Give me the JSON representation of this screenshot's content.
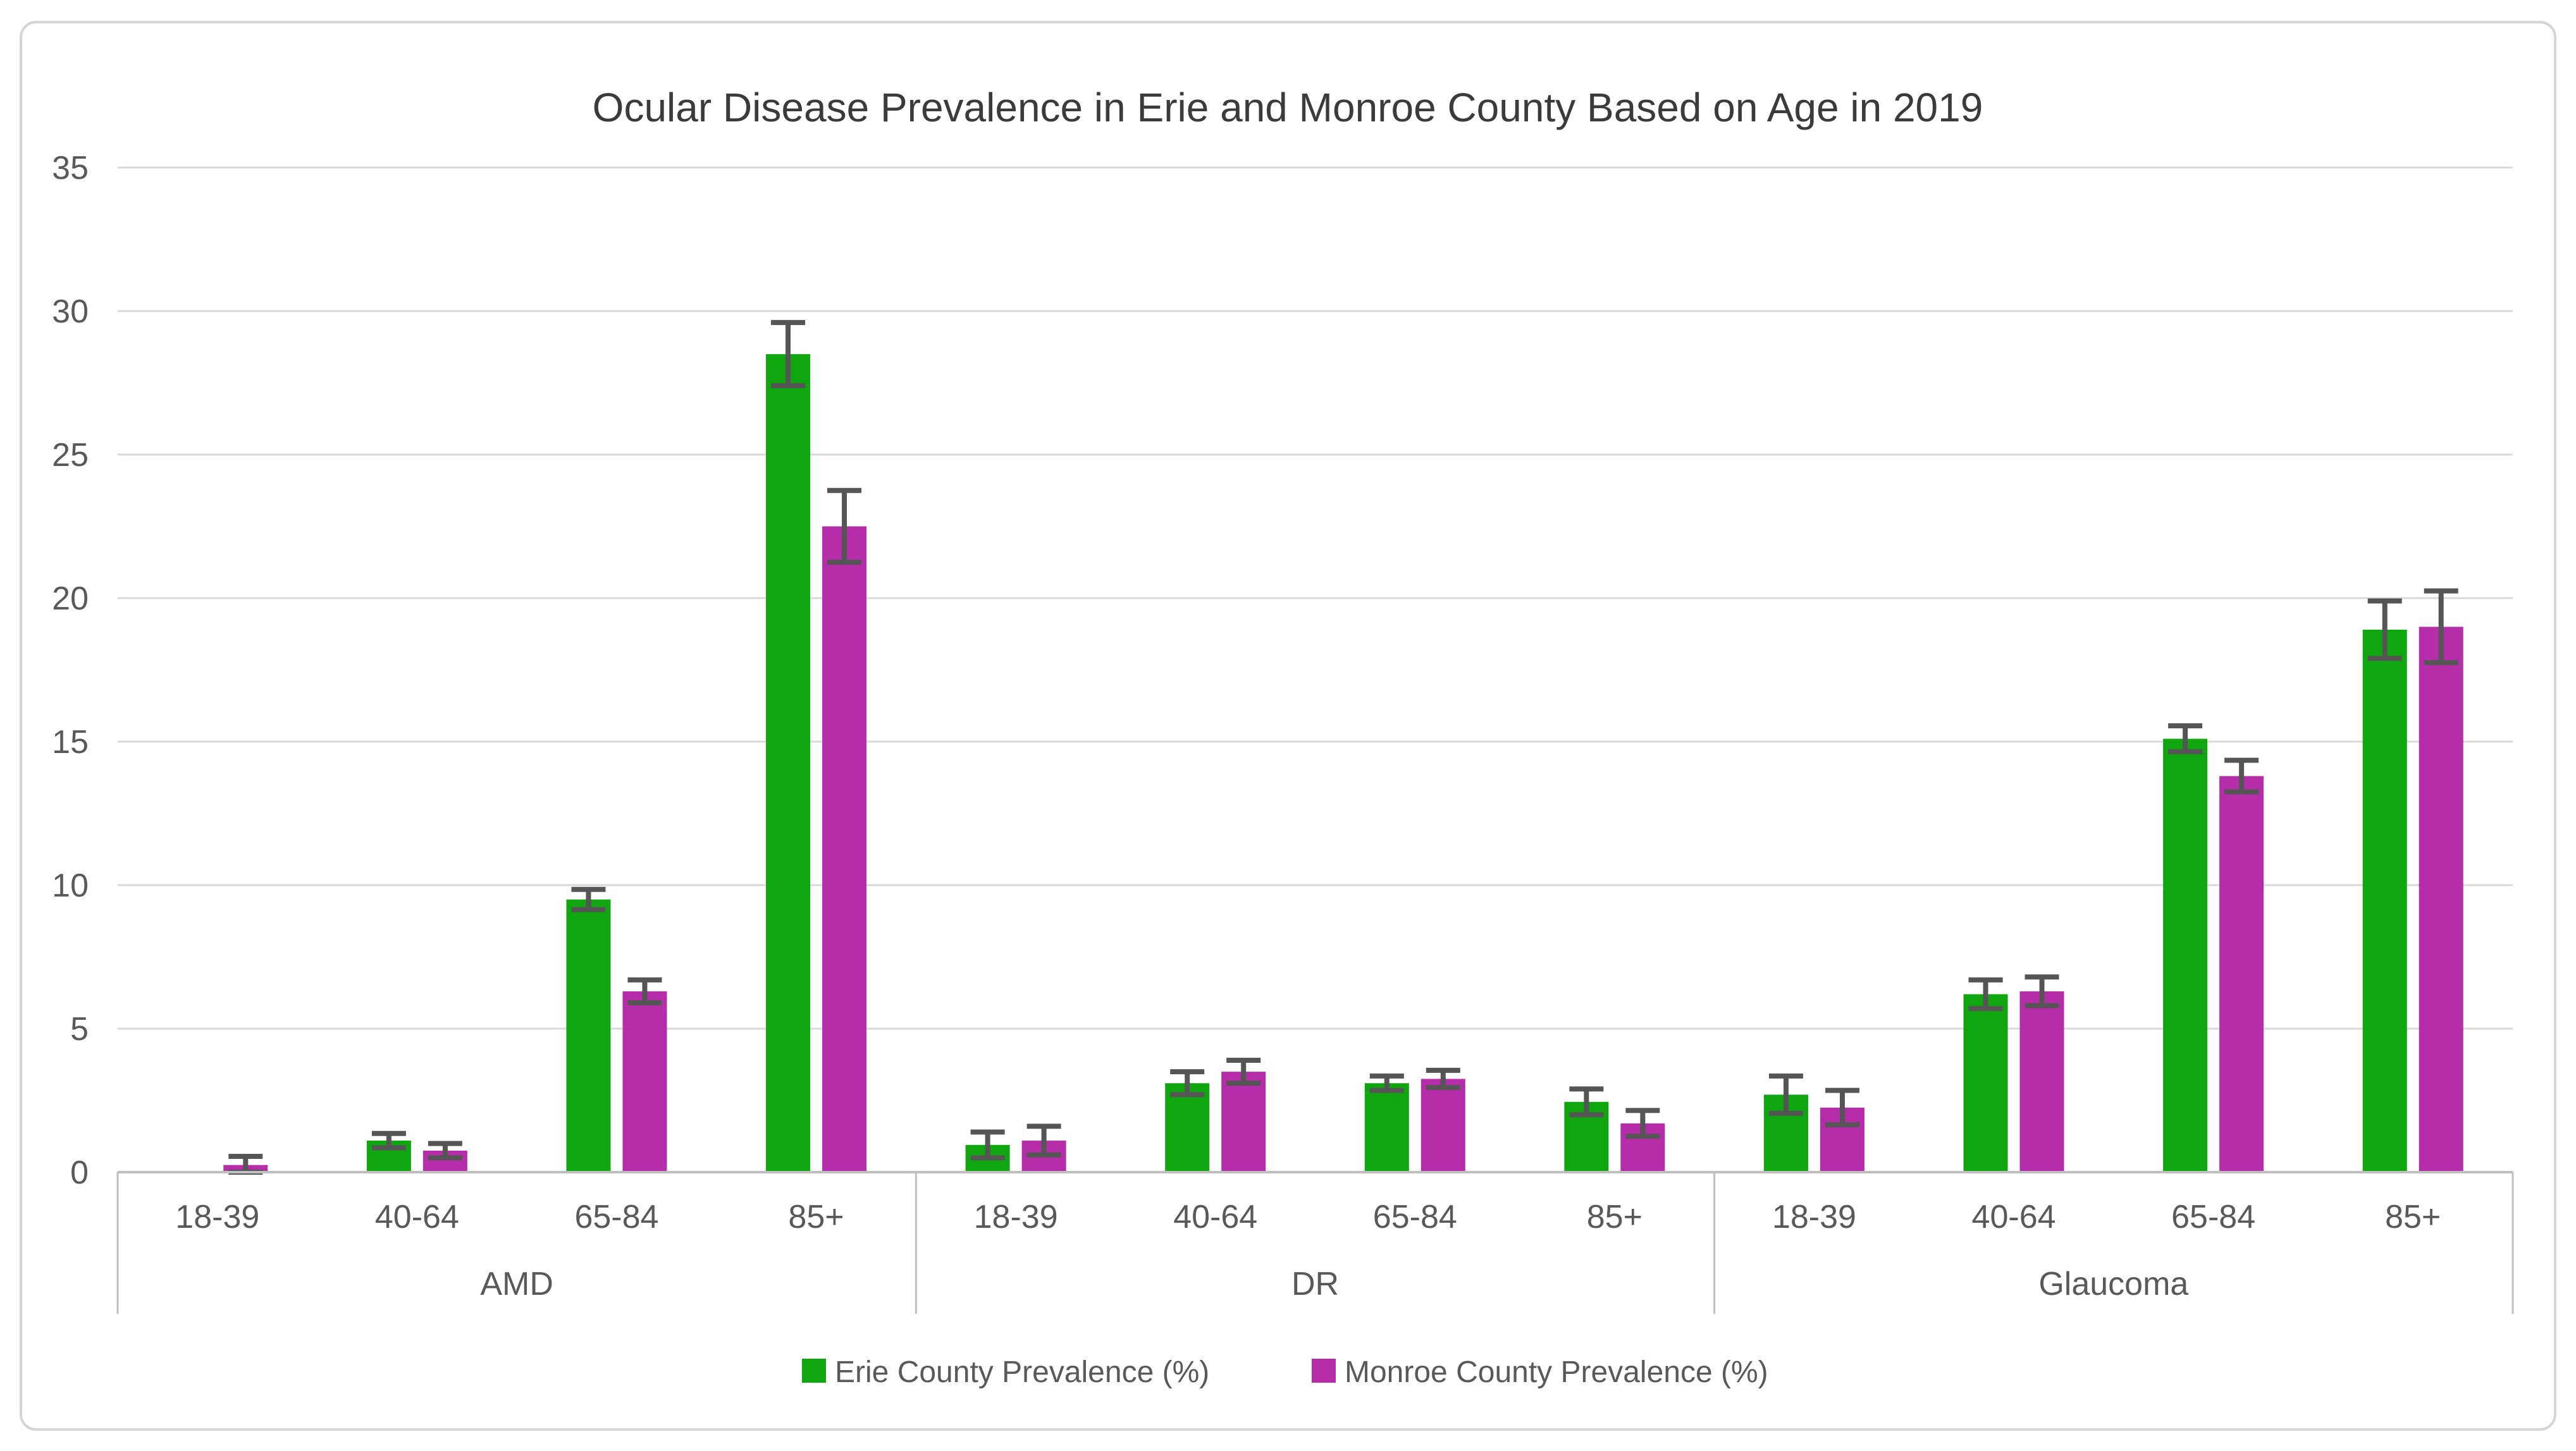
{
  "chart_data": {
    "type": "bar",
    "title": "Ocular Disease Prevalence in Erie and Monroe County Based on Age in 2019",
    "categories": {
      "groups": [
        "AMD",
        "DR",
        "Glaucoma"
      ],
      "ages": [
        "18-39",
        "40-64",
        "65-84",
        "85+"
      ]
    },
    "series": [
      {
        "name": "Erie County Prevalence (%)",
        "color": "#10A610",
        "values": [
          [
            0,
            1.1,
            9.5,
            28.5
          ],
          [
            0.95,
            3.1,
            3.1,
            2.45
          ],
          [
            2.7,
            6.2,
            15.1,
            18.9
          ]
        ],
        "errors": [
          [
            0,
            0.25,
            0.35,
            1.1
          ],
          [
            0.45,
            0.4,
            0.25,
            0.45
          ],
          [
            0.65,
            0.5,
            0.45,
            1.0
          ]
        ]
      },
      {
        "name": "Monroe County Prevalence (%)",
        "color": "#B62DA9",
        "values": [
          [
            0.25,
            0.75,
            6.3,
            22.5
          ],
          [
            1.1,
            3.5,
            3.25,
            1.7
          ],
          [
            2.25,
            6.3,
            13.8,
            19.0
          ]
        ],
        "errors": [
          [
            0.3,
            0.25,
            0.4,
            1.25
          ],
          [
            0.5,
            0.4,
            0.3,
            0.45
          ],
          [
            0.6,
            0.5,
            0.55,
            1.25
          ]
        ]
      }
    ],
    "y_axis": {
      "min": 0,
      "max": 35,
      "tick_step": 5,
      "ticks": [
        0,
        5,
        10,
        15,
        20,
        25,
        30,
        35
      ]
    },
    "grid": true,
    "legend_position": "bottom",
    "error_bars": true,
    "colors": {
      "gridline": "#D9D9D9",
      "axis_line": "#BFBFBF",
      "separator": "#BFBFBF",
      "error_bar": "#555555",
      "label_text": "#595959",
      "title_text": "#3B3B3B",
      "border": "#D5D5D5",
      "background": "#FFFFFF"
    }
  }
}
